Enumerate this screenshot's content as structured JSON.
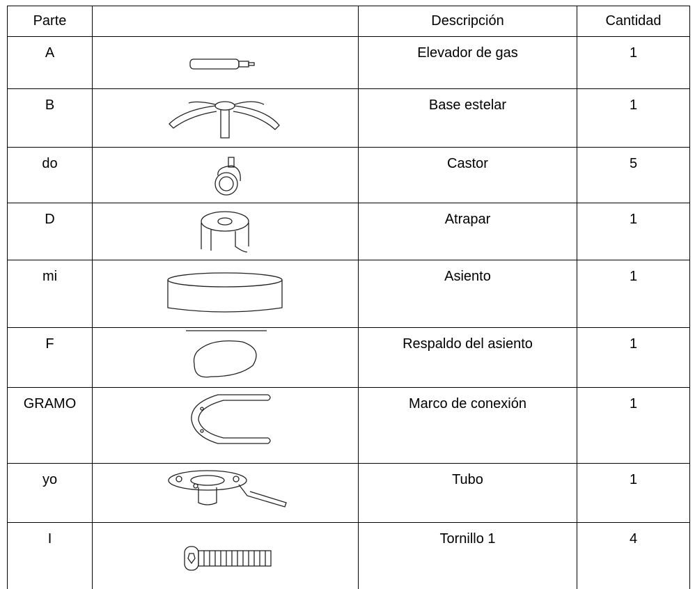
{
  "header": {
    "part": "Parte",
    "description": "Descripción",
    "quantity": "Cantidad"
  },
  "rows": [
    [
      "A",
      "Elevador de gas",
      1
    ],
    [
      "B",
      "Base estelar",
      1
    ],
    [
      "do",
      "Castor",
      5
    ],
    [
      "D",
      "Atrapar",
      1
    ],
    [
      "mi",
      "Asiento",
      1
    ],
    [
      "F",
      "Respaldo del asiento",
      1
    ],
    [
      "GRAMO",
      "Marco de conexión",
      1
    ],
    [
      "yo",
      "Tubo",
      1
    ],
    [
      "I",
      "Tornillo 1",
      4
    ]
  ]
}
